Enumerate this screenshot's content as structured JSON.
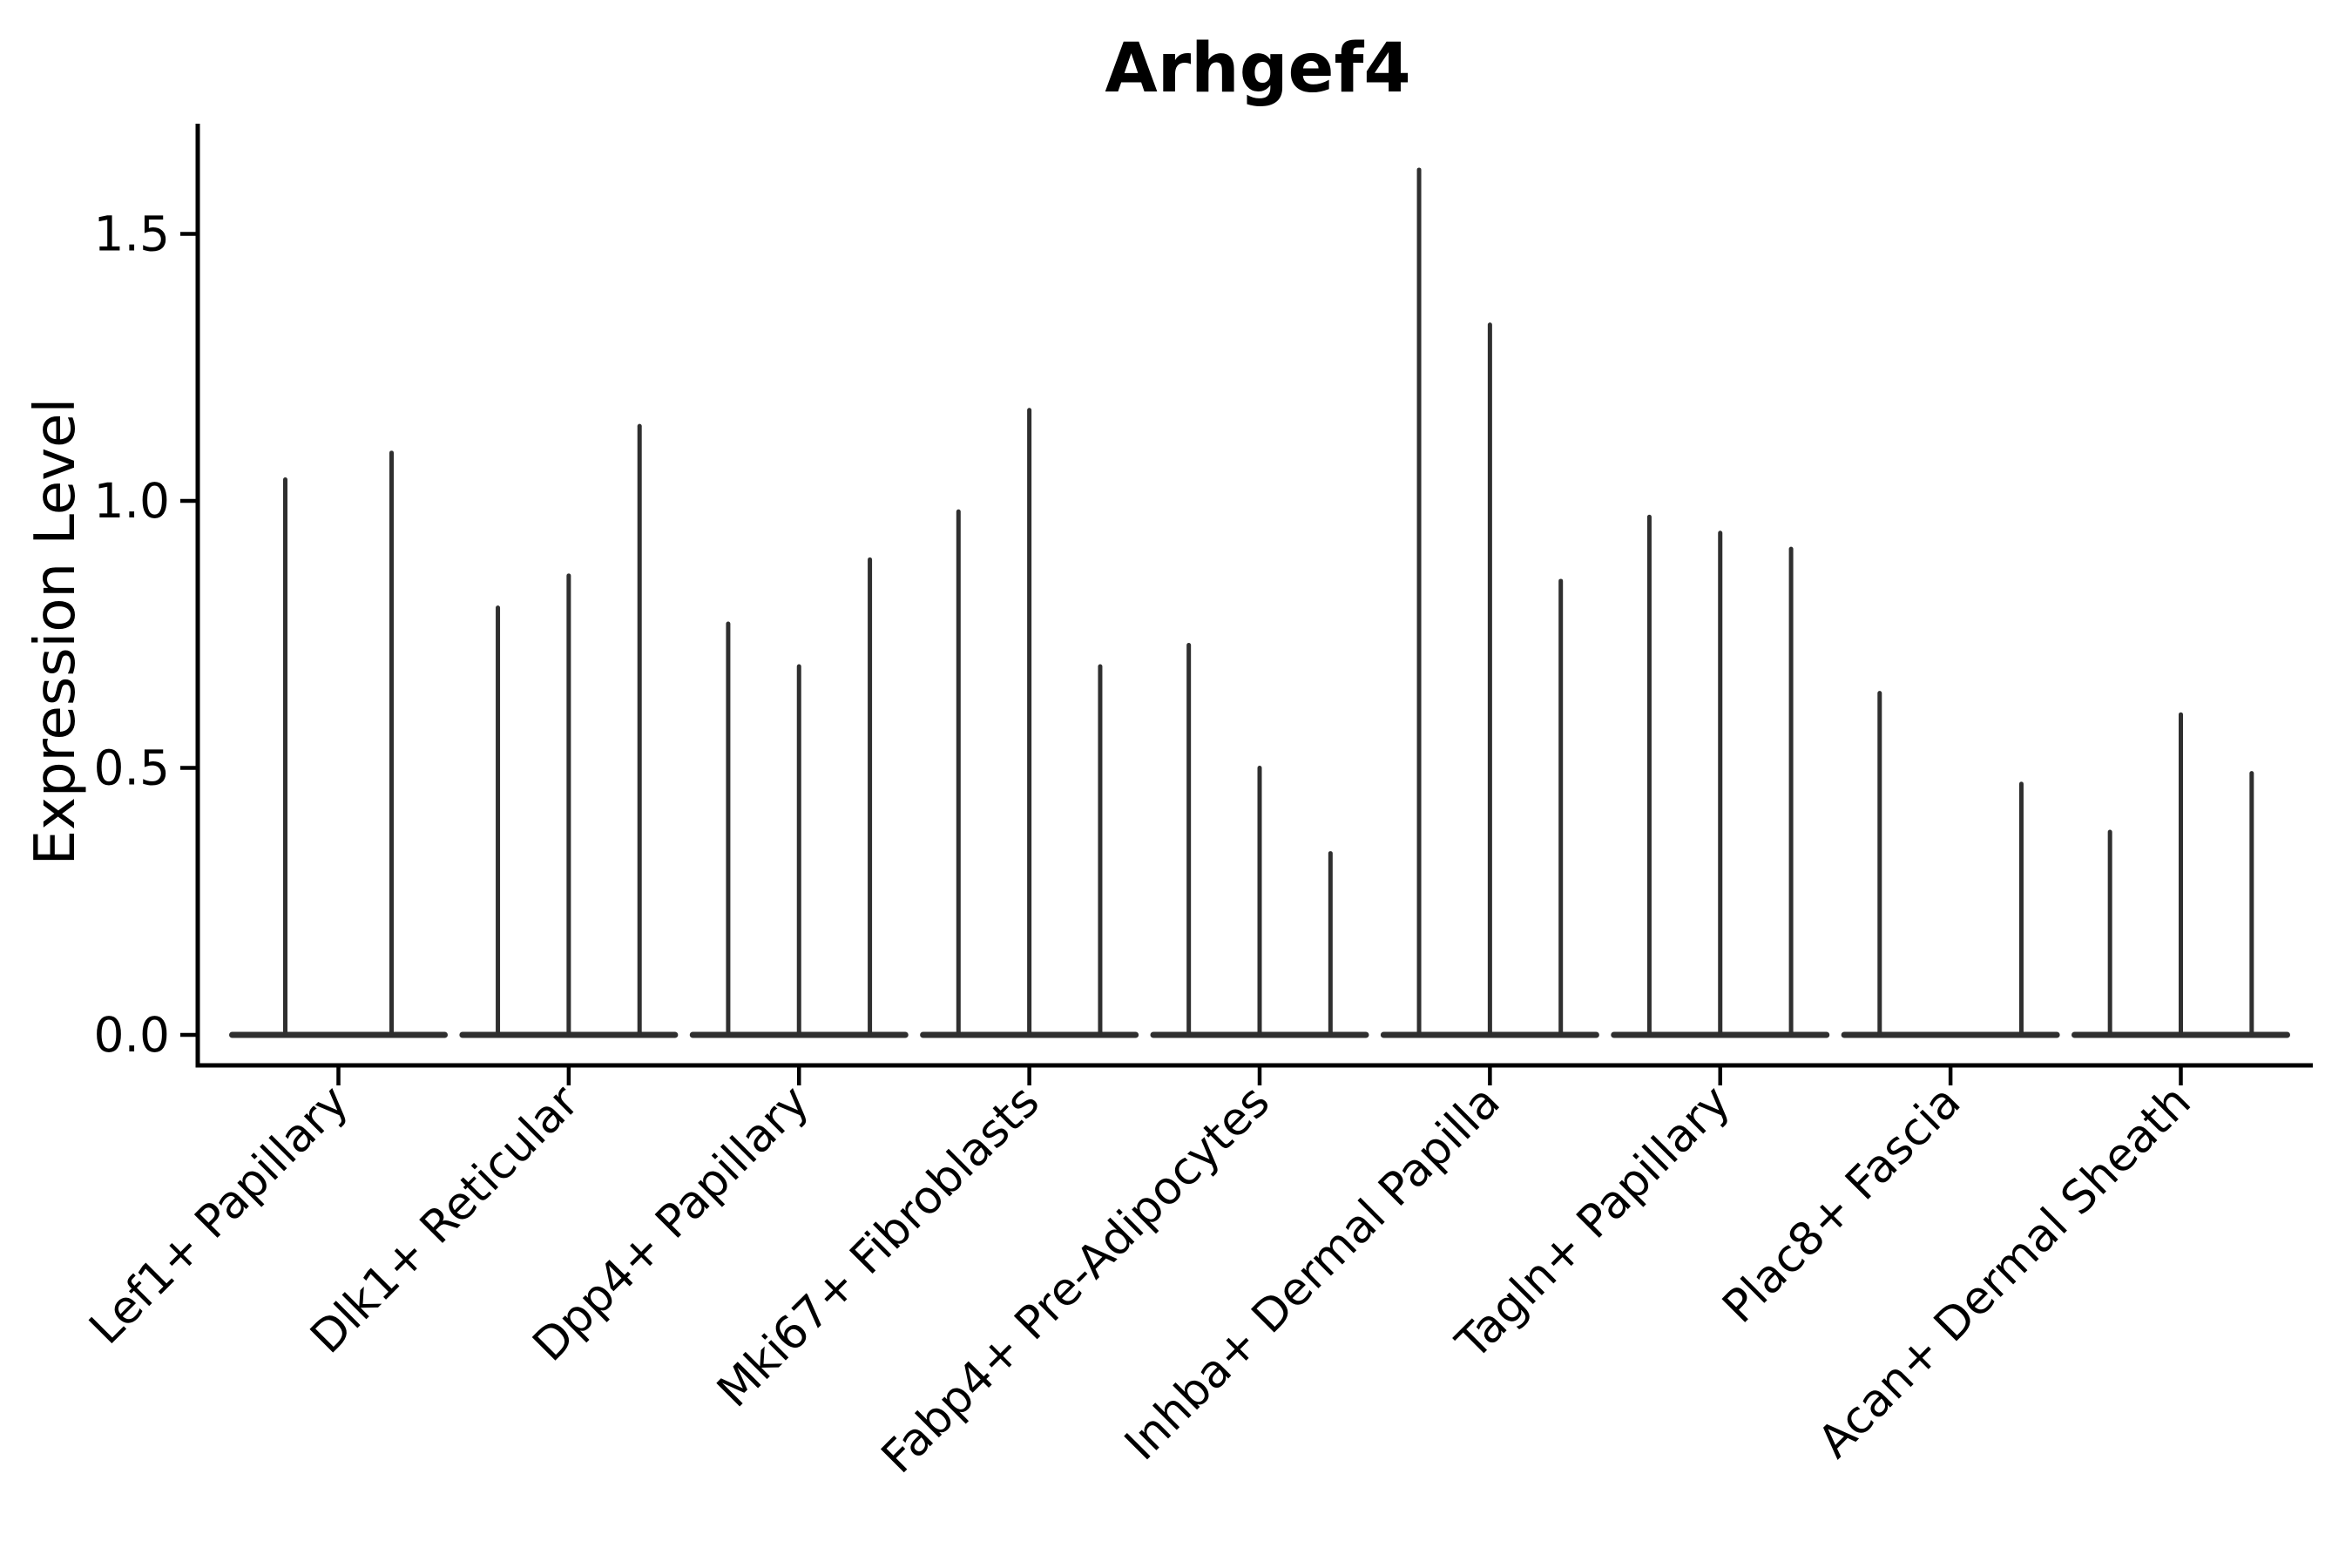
{
  "chart_data": {
    "type": "violin",
    "title": "Arhgef4",
    "ylabel": "Expression Level",
    "xlabel": "",
    "ytick_labels": [
      "0.0",
      "0.5",
      "1.0",
      "1.5"
    ],
    "ytick_values": [
      0.0,
      0.5,
      1.0,
      1.5
    ],
    "ylim": [
      -0.06,
      1.71
    ],
    "grid": false,
    "legend_position": "none",
    "groups": [
      {
        "label": "Lef1+ Papillary",
        "violins": [
          1.04,
          1.09
        ]
      },
      {
        "label": "Dlk1+ Reticular",
        "violins": [
          0.8,
          0.86,
          1.14
        ]
      },
      {
        "label": "Dpp4+ Papillary",
        "violins": [
          0.77,
          0.69,
          0.89
        ]
      },
      {
        "label": "Mki67+ Fibroblasts",
        "violins": [
          0.98,
          1.17,
          0.69
        ]
      },
      {
        "label": "Fabp4+ Pre-Adipocytes",
        "violins": [
          0.73,
          0.5,
          0.34
        ]
      },
      {
        "label": "Inhba+ Dermal Papilla",
        "violins": [
          1.62,
          1.33,
          0.85
        ]
      },
      {
        "label": "Tagln+ Papillary",
        "violins": [
          0.97,
          0.94,
          0.91
        ]
      },
      {
        "label": "Plac8+ Fascia",
        "violins": [
          0.64,
          null,
          0.47
        ]
      },
      {
        "label": "Acan+ Dermal Sheath",
        "violins": [
          0.38,
          0.6,
          0.49
        ]
      }
    ],
    "colors": {
      "violin": "#2f2f2f",
      "axis": "#000000",
      "text": "#000000",
      "background": "#ffffff"
    }
  }
}
